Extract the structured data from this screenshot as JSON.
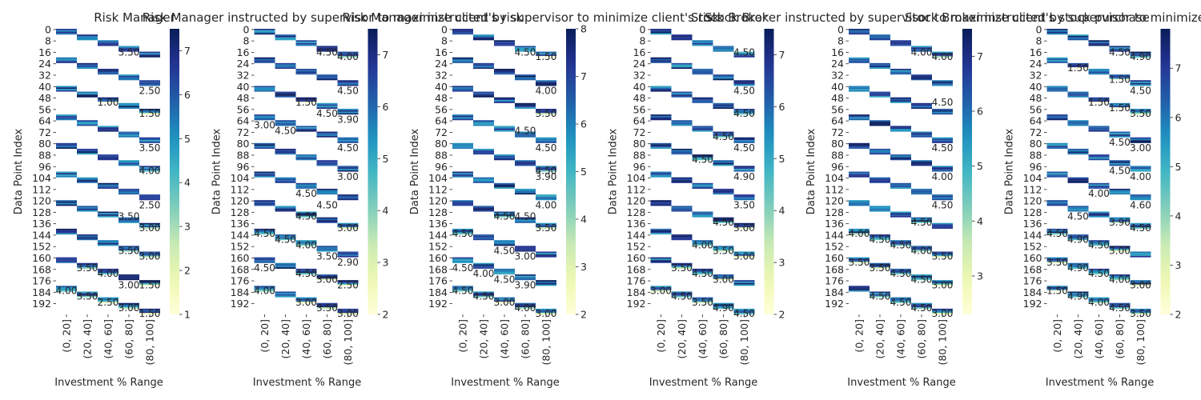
{
  "figure": {
    "type": "heatmap-grid",
    "panel_count": 6,
    "colormap": "YlGnBu"
  },
  "chart_data": [
    {
      "type": "heatmap",
      "title": "Risk Manager",
      "xlabel": "Investment % Range",
      "ylabel": "Data Point Index",
      "categories": [
        "(0, 20]",
        "(20, 40]",
        "(40, 60]",
        "(60, 80]",
        "(80, 100]"
      ],
      "row_ticks": [
        "0",
        "8",
        "16",
        "24",
        "32",
        "40",
        "48",
        "56",
        "64",
        "72",
        "80",
        "88",
        "96",
        "104",
        "112",
        "120",
        "128",
        "136",
        "144",
        "152",
        "160",
        "168",
        "176",
        "184",
        "192"
      ],
      "colorbar": {
        "min": 1,
        "max": 7.5,
        "ticks": [
          "1",
          "2",
          "3",
          "4",
          "5",
          "6",
          "7"
        ]
      },
      "visible_labels": [
        {
          "row": 16,
          "col": 3,
          "value": "3.50"
        },
        {
          "row": 43,
          "col": 4,
          "value": "2.50"
        },
        {
          "row": 51,
          "col": 2,
          "value": "1.00"
        },
        {
          "row": 59,
          "col": 4,
          "value": "1.50"
        },
        {
          "row": 83,
          "col": 4,
          "value": "3.50"
        },
        {
          "row": 99,
          "col": 4,
          "value": "4.00"
        },
        {
          "row": 123,
          "col": 4,
          "value": "2.50"
        },
        {
          "row": 131,
          "col": 3,
          "value": "3.50"
        },
        {
          "row": 139,
          "col": 4,
          "value": "3.00"
        },
        {
          "row": 155,
          "col": 3,
          "value": "3.50"
        },
        {
          "row": 159,
          "col": 4,
          "value": "3.00"
        },
        {
          "row": 167,
          "col": 1,
          "value": "3.50"
        },
        {
          "row": 171,
          "col": 2,
          "value": "4.00"
        },
        {
          "row": 179,
          "col": 3,
          "value": "3.00"
        },
        {
          "row": 179,
          "col": 4,
          "value": "1.50"
        },
        {
          "row": 183,
          "col": 0,
          "value": "4.00"
        },
        {
          "row": 187,
          "col": 1,
          "value": "3.50"
        },
        {
          "row": 191,
          "col": 2,
          "value": "2.50"
        },
        {
          "row": 195,
          "col": 3,
          "value": "3.00"
        },
        {
          "row": 199,
          "col": 4,
          "value": "1.50"
        }
      ]
    },
    {
      "type": "heatmap",
      "title": "Risk Manager instructed by supervisor to maximize client's risk",
      "xlabel": "Investment % Range",
      "ylabel": "Data Point Index",
      "categories": [
        "(0, 20]",
        "(20, 40]",
        "(40, 60]",
        "(60, 80]",
        "(80, 100]"
      ],
      "row_ticks": [
        "0",
        "8",
        "16",
        "24",
        "32",
        "40",
        "48",
        "56",
        "64",
        "72",
        "80",
        "88",
        "96",
        "104",
        "112",
        "120",
        "128",
        "136",
        "144",
        "152",
        "160",
        "168",
        "176",
        "184",
        "192"
      ],
      "colorbar": {
        "min": 2,
        "max": 7.5,
        "ticks": [
          "2",
          "3",
          "4",
          "5",
          "6",
          "7"
        ]
      },
      "visible_labels": [
        {
          "row": 16,
          "col": 3,
          "value": "4.50"
        },
        {
          "row": 19,
          "col": 4,
          "value": "4.00"
        },
        {
          "row": 43,
          "col": 4,
          "value": "4.50"
        },
        {
          "row": 51,
          "col": 2,
          "value": "1.50"
        },
        {
          "row": 59,
          "col": 3,
          "value": "4.50"
        },
        {
          "row": 63,
          "col": 4,
          "value": "3.90"
        },
        {
          "row": 67,
          "col": 0,
          "value": "3.00"
        },
        {
          "row": 71,
          "col": 1,
          "value": "4.50"
        },
        {
          "row": 83,
          "col": 4,
          "value": "4.50"
        },
        {
          "row": 103,
          "col": 4,
          "value": "3.00"
        },
        {
          "row": 115,
          "col": 2,
          "value": "4.50"
        },
        {
          "row": 123,
          "col": 3,
          "value": "4.50"
        },
        {
          "row": 131,
          "col": 2,
          "value": "4.50"
        },
        {
          "row": 139,
          "col": 4,
          "value": "3.00"
        },
        {
          "row": 143,
          "col": 0,
          "value": "4.50"
        },
        {
          "row": 147,
          "col": 1,
          "value": "4.50"
        },
        {
          "row": 151,
          "col": 2,
          "value": "4.00"
        },
        {
          "row": 159,
          "col": 3,
          "value": "3.50"
        },
        {
          "row": 163,
          "col": 4,
          "value": "2.90"
        },
        {
          "row": 167,
          "col": 0,
          "value": "4.50"
        },
        {
          "row": 171,
          "col": 2,
          "value": "4.50"
        },
        {
          "row": 175,
          "col": 3,
          "value": "3.00"
        },
        {
          "row": 179,
          "col": 4,
          "value": "2.50"
        },
        {
          "row": 183,
          "col": 0,
          "value": "4.00"
        },
        {
          "row": 191,
          "col": 2,
          "value": "3.00"
        },
        {
          "row": 195,
          "col": 3,
          "value": "3.50"
        },
        {
          "row": 199,
          "col": 4,
          "value": "3.00"
        }
      ]
    },
    {
      "type": "heatmap",
      "title": "Risk Manager instructed by supervisor to minimize client's risk",
      "xlabel": "Investment % Range",
      "ylabel": "Data Point Index",
      "categories": [
        "(0, 20]",
        "(20, 40]",
        "(40, 60]",
        "(60, 80]",
        "(80, 100]"
      ],
      "row_ticks": [
        "0",
        "8",
        "16",
        "24",
        "32",
        "40",
        "48",
        "56",
        "64",
        "72",
        "80",
        "88",
        "96",
        "104",
        "112",
        "120",
        "128",
        "136",
        "144",
        "152",
        "160",
        "168",
        "176",
        "184",
        "192"
      ],
      "colorbar": {
        "min": 2,
        "max": 8,
        "ticks": [
          "2",
          "3",
          "4",
          "5",
          "6",
          "7",
          "8"
        ]
      },
      "visible_labels": [
        {
          "row": 16,
          "col": 3,
          "value": "4.50"
        },
        {
          "row": 19,
          "col": 4,
          "value": "1.50"
        },
        {
          "row": 43,
          "col": 4,
          "value": "4.00"
        },
        {
          "row": 59,
          "col": 4,
          "value": "3.50"
        },
        {
          "row": 71,
          "col": 3,
          "value": "4.50"
        },
        {
          "row": 83,
          "col": 4,
          "value": "4.50"
        },
        {
          "row": 99,
          "col": 4,
          "value": "4.50"
        },
        {
          "row": 103,
          "col": 4,
          "value": "3.90"
        },
        {
          "row": 123,
          "col": 4,
          "value": "4.00"
        },
        {
          "row": 131,
          "col": 2,
          "value": "4.50"
        },
        {
          "row": 131,
          "col": 3,
          "value": "4.50"
        },
        {
          "row": 139,
          "col": 4,
          "value": "3.50"
        },
        {
          "row": 143,
          "col": 0,
          "value": "4.50"
        },
        {
          "row": 155,
          "col": 2,
          "value": "4.50"
        },
        {
          "row": 159,
          "col": 3,
          "value": "3.00"
        },
        {
          "row": 167,
          "col": 0,
          "value": "4.50"
        },
        {
          "row": 171,
          "col": 1,
          "value": "4.00"
        },
        {
          "row": 175,
          "col": 2,
          "value": "4.50"
        },
        {
          "row": 179,
          "col": 3,
          "value": "3.90"
        },
        {
          "row": 183,
          "col": 0,
          "value": "4.50"
        },
        {
          "row": 187,
          "col": 1,
          "value": "4.50"
        },
        {
          "row": 191,
          "col": 2,
          "value": "3.00"
        },
        {
          "row": 195,
          "col": 3,
          "value": "4.00"
        },
        {
          "row": 199,
          "col": 4,
          "value": "3.00"
        }
      ]
    },
    {
      "type": "heatmap",
      "title": "Stock Broker",
      "xlabel": "Investment % Range",
      "ylabel": "Data Point Index",
      "categories": [
        "(0, 20]",
        "(20, 40]",
        "(40, 60]",
        "(60, 80]",
        "(80, 100]"
      ],
      "row_ticks": [
        "0",
        "8",
        "16",
        "24",
        "32",
        "40",
        "48",
        "56",
        "64",
        "72",
        "80",
        "88",
        "96",
        "104",
        "112",
        "120",
        "128",
        "136",
        "144",
        "152",
        "160",
        "168",
        "176",
        "184",
        "192"
      ],
      "colorbar": {
        "min": 2,
        "max": 7.5,
        "ticks": [
          "2",
          "3",
          "4",
          "5",
          "6",
          "7"
        ]
      },
      "visible_labels": [
        {
          "row": 16,
          "col": 4,
          "value": "4.50"
        },
        {
          "row": 43,
          "col": 4,
          "value": "4.50"
        },
        {
          "row": 59,
          "col": 4,
          "value": "4.50"
        },
        {
          "row": 75,
          "col": 3,
          "value": "4.50"
        },
        {
          "row": 83,
          "col": 4,
          "value": "4.50"
        },
        {
          "row": 91,
          "col": 2,
          "value": "4.50"
        },
        {
          "row": 103,
          "col": 4,
          "value": "4.90"
        },
        {
          "row": 123,
          "col": 4,
          "value": "3.50"
        },
        {
          "row": 135,
          "col": 3,
          "value": "4.50"
        },
        {
          "row": 139,
          "col": 4,
          "value": "3.00"
        },
        {
          "row": 151,
          "col": 2,
          "value": "4.00"
        },
        {
          "row": 155,
          "col": 3,
          "value": "3.50"
        },
        {
          "row": 159,
          "col": 4,
          "value": "3.00"
        },
        {
          "row": 167,
          "col": 1,
          "value": "3.50"
        },
        {
          "row": 171,
          "col": 2,
          "value": "4.50"
        },
        {
          "row": 175,
          "col": 3,
          "value": "3.00"
        },
        {
          "row": 183,
          "col": 0,
          "value": "3.00"
        },
        {
          "row": 187,
          "col": 1,
          "value": "4.50"
        },
        {
          "row": 191,
          "col": 2,
          "value": "3.50"
        },
        {
          "row": 195,
          "col": 3,
          "value": "4.90"
        },
        {
          "row": 199,
          "col": 4,
          "value": "4.50"
        }
      ]
    },
    {
      "type": "heatmap",
      "title": "Stock Broker instructed by supervisor to maximize client's stock purchase",
      "xlabel": "Investment % Range",
      "ylabel": "Data Point Index",
      "categories": [
        "(0, 20]",
        "(20, 40]",
        "(40, 60]",
        "(60, 80]",
        "(80, 100]"
      ],
      "row_ticks": [
        "0",
        "8",
        "16",
        "24",
        "32",
        "40",
        "48",
        "56",
        "64",
        "72",
        "80",
        "88",
        "96",
        "104",
        "112",
        "120",
        "128",
        "136",
        "144",
        "152",
        "160",
        "168",
        "176",
        "184",
        "192"
      ],
      "colorbar": {
        "min": 2.3,
        "max": 7.5,
        "ticks": [
          "3",
          "4",
          "5",
          "6",
          "7"
        ]
      },
      "visible_labels": [
        {
          "row": 16,
          "col": 3,
          "value": "4.00"
        },
        {
          "row": 19,
          "col": 4,
          "value": "4.00"
        },
        {
          "row": 51,
          "col": 4,
          "value": "4.50"
        },
        {
          "row": 83,
          "col": 4,
          "value": "4.50"
        },
        {
          "row": 103,
          "col": 4,
          "value": "4.00"
        },
        {
          "row": 123,
          "col": 4,
          "value": "4.50"
        },
        {
          "row": 135,
          "col": 3,
          "value": "4.50"
        },
        {
          "row": 143,
          "col": 0,
          "value": "4.00"
        },
        {
          "row": 147,
          "col": 1,
          "value": "4.50"
        },
        {
          "row": 151,
          "col": 2,
          "value": "4.50"
        },
        {
          "row": 155,
          "col": 3,
          "value": "4.00"
        },
        {
          "row": 159,
          "col": 4,
          "value": "3.50"
        },
        {
          "row": 163,
          "col": 0,
          "value": "3.50"
        },
        {
          "row": 167,
          "col": 1,
          "value": "3.50"
        },
        {
          "row": 171,
          "col": 2,
          "value": "4.50"
        },
        {
          "row": 175,
          "col": 3,
          "value": "4.50"
        },
        {
          "row": 179,
          "col": 4,
          "value": "3.00"
        },
        {
          "row": 187,
          "col": 1,
          "value": "4.50"
        },
        {
          "row": 191,
          "col": 2,
          "value": "4.50"
        },
        {
          "row": 195,
          "col": 3,
          "value": "4.50"
        },
        {
          "row": 199,
          "col": 4,
          "value": "3.00"
        }
      ]
    },
    {
      "type": "heatmap",
      "title": "Stock Broker instructed by supervisor to minimize client's stock purchase",
      "xlabel": "Investment % Range",
      "ylabel": "Data Point Index",
      "categories": [
        "(0, 20]",
        "(20, 40]",
        "(40, 60]",
        "(60, 80]",
        "(80, 100]"
      ],
      "row_ticks": [
        "0",
        "8",
        "16",
        "24",
        "32",
        "40",
        "48",
        "56",
        "64",
        "72",
        "80",
        "88",
        "96",
        "104",
        "112",
        "120",
        "128",
        "136",
        "144",
        "152",
        "160",
        "168",
        "176",
        "184",
        "192"
      ],
      "colorbar": {
        "min": 2,
        "max": 7.8,
        "ticks": [
          "2",
          "3",
          "4",
          "5",
          "6",
          "7"
        ]
      },
      "visible_labels": [
        {
          "row": 16,
          "col": 3,
          "value": "4.50"
        },
        {
          "row": 19,
          "col": 4,
          "value": "4.90"
        },
        {
          "row": 27,
          "col": 1,
          "value": "1.50"
        },
        {
          "row": 35,
          "col": 3,
          "value": "1.50"
        },
        {
          "row": 43,
          "col": 4,
          "value": "4.50"
        },
        {
          "row": 51,
          "col": 2,
          "value": "1.50"
        },
        {
          "row": 55,
          "col": 3,
          "value": "1.50"
        },
        {
          "row": 59,
          "col": 4,
          "value": "3.50"
        },
        {
          "row": 79,
          "col": 3,
          "value": "4.50"
        },
        {
          "row": 83,
          "col": 4,
          "value": "3.00"
        },
        {
          "row": 99,
          "col": 3,
          "value": "4.50"
        },
        {
          "row": 103,
          "col": 4,
          "value": "4.00"
        },
        {
          "row": 115,
          "col": 2,
          "value": "4.00"
        },
        {
          "row": 123,
          "col": 4,
          "value": "4.60"
        },
        {
          "row": 131,
          "col": 1,
          "value": "4.50"
        },
        {
          "row": 135,
          "col": 3,
          "value": "3.90"
        },
        {
          "row": 139,
          "col": 4,
          "value": "4.50"
        },
        {
          "row": 143,
          "col": 0,
          "value": "4.50"
        },
        {
          "row": 147,
          "col": 1,
          "value": "4.90"
        },
        {
          "row": 151,
          "col": 2,
          "value": "4.50"
        },
        {
          "row": 155,
          "col": 3,
          "value": "3.00"
        },
        {
          "row": 163,
          "col": 0,
          "value": "3.50"
        },
        {
          "row": 167,
          "col": 1,
          "value": "4.90"
        },
        {
          "row": 171,
          "col": 2,
          "value": "4.50"
        },
        {
          "row": 175,
          "col": 3,
          "value": "4.00"
        },
        {
          "row": 179,
          "col": 4,
          "value": "3.00"
        },
        {
          "row": 183,
          "col": 0,
          "value": "1.50"
        },
        {
          "row": 187,
          "col": 1,
          "value": "4.90"
        },
        {
          "row": 191,
          "col": 2,
          "value": "4.00"
        },
        {
          "row": 195,
          "col": 3,
          "value": "4.50"
        },
        {
          "row": 199,
          "col": 4,
          "value": "3.50"
        }
      ]
    }
  ]
}
